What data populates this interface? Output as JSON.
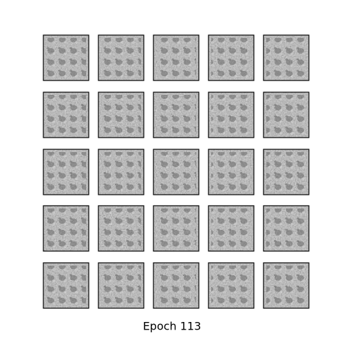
{
  "caption": "Epoch 113"
}
